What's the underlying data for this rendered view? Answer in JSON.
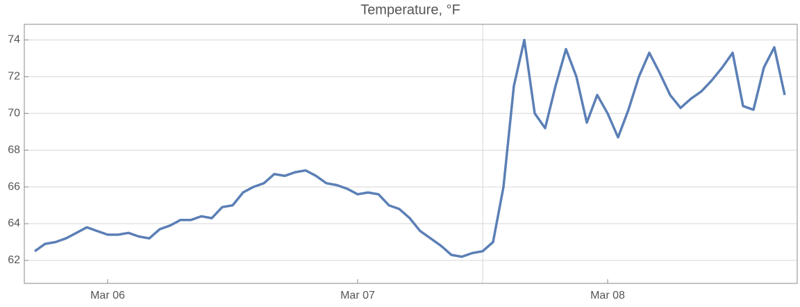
{
  "chart_data": {
    "type": "line",
    "title": "Temperature, °F",
    "x": [
      -7,
      -6,
      -5,
      -4,
      -3,
      -2,
      -1,
      0,
      1,
      2,
      3,
      4,
      5,
      6,
      7,
      8,
      9,
      10,
      11,
      12,
      13,
      14,
      15,
      16,
      17,
      18,
      19,
      20,
      21,
      22,
      23,
      24,
      25,
      26,
      27,
      28,
      29,
      30,
      31,
      32,
      33,
      34,
      35,
      36,
      37,
      38,
      39,
      40,
      41,
      42,
      43,
      44,
      45,
      46,
      47,
      48,
      49,
      50,
      51,
      52,
      53,
      54,
      55,
      56,
      57,
      58,
      59,
      60,
      61,
      62,
      63,
      64,
      65
    ],
    "series": [
      {
        "name": "Temperature",
        "color": "#5b7fb6",
        "values": [
          62.5,
          62.9,
          63.0,
          63.2,
          63.5,
          63.8,
          63.6,
          63.4,
          63.4,
          63.5,
          63.3,
          63.2,
          63.7,
          63.9,
          64.2,
          64.2,
          64.4,
          64.3,
          64.9,
          65.0,
          65.7,
          66.0,
          66.2,
          66.7,
          66.6,
          66.8,
          66.9,
          66.6,
          66.2,
          66.1,
          65.9,
          65.6,
          65.7,
          65.6,
          65.0,
          64.8,
          64.3,
          63.6,
          63.2,
          62.8,
          62.3,
          62.2,
          62.4,
          62.5,
          63.0,
          66.0,
          71.5,
          74.0,
          70.0,
          69.2,
          71.5,
          73.5,
          72.0,
          69.5,
          71.0,
          70.0,
          68.7,
          70.2,
          72.0,
          73.3,
          72.2,
          71.0,
          70.3,
          70.8,
          71.2,
          71.8,
          72.5,
          73.3,
          70.4,
          70.2,
          72.5,
          73.6,
          71.0
        ]
      }
    ],
    "xlim": [
      -8,
      66.2
    ],
    "xticks": [
      {
        "value": 0,
        "label": "Mar 06"
      },
      {
        "value": 24,
        "label": "Mar 07"
      },
      {
        "value": 48,
        "label": "Mar 08"
      }
    ],
    "ylim": [
      60.75,
      74.85
    ],
    "yticks": [
      62,
      64,
      66,
      68,
      70,
      72,
      74
    ],
    "grid": true,
    "x_marker": 36
  }
}
